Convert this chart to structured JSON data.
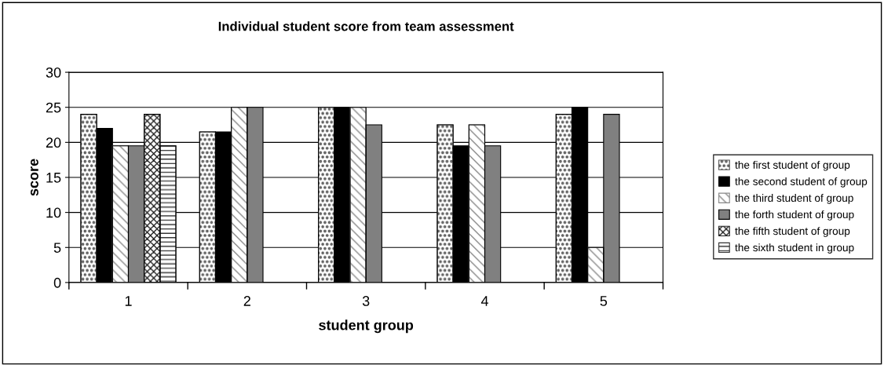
{
  "chart_data": {
    "type": "bar",
    "title": "Individual student score from team assessment",
    "xlabel": "student group",
    "ylabel": "score",
    "categories": [
      "1",
      "2",
      "3",
      "4",
      "5"
    ],
    "series": [
      {
        "name": "the first student of group",
        "color": "#555555",
        "values": [
          24,
          21.5,
          25,
          22.5,
          24
        ]
      },
      {
        "name": "the second student of group",
        "color": "#000000",
        "values": [
          22,
          21.5,
          25,
          19.5,
          25
        ]
      },
      {
        "name": "the third student of group",
        "color": "#888888",
        "values": [
          19.5,
          25,
          25,
          22.5,
          5
        ]
      },
      {
        "name": "the forth student of group",
        "color": "#808080",
        "values": [
          19.5,
          25,
          22.5,
          19.5,
          24
        ]
      },
      {
        "name": "the fifth student of group",
        "color": "#222222",
        "values": [
          24,
          null,
          null,
          null,
          null
        ]
      },
      {
        "name": "the sixth student in group",
        "color": "#333333",
        "values": [
          19.5,
          null,
          null,
          null,
          null
        ]
      }
    ],
    "ylim": [
      0,
      30
    ],
    "yticks": [
      0,
      5,
      10,
      15,
      20,
      25,
      30
    ],
    "grid": "y",
    "legend": "right"
  }
}
